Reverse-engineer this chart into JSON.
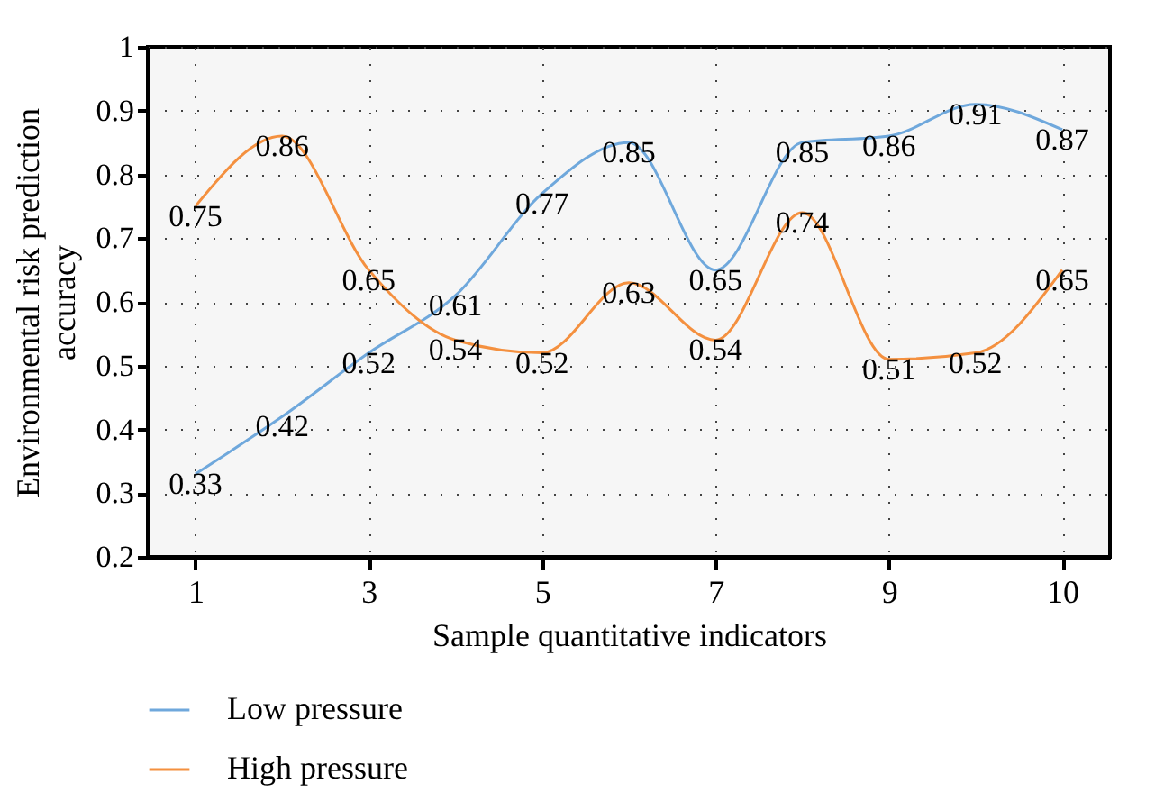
{
  "chart_data": {
    "type": "line",
    "xlabel": "Sample quantitative indicators",
    "ylabel": "Environmental risk prediction accuracy",
    "categories": [
      "1",
      null,
      "3",
      null,
      "5",
      null,
      "7",
      null,
      "9",
      null,
      "10"
    ],
    "ylim": [
      0.2,
      1
    ],
    "yticks": [
      0.2,
      0.3,
      0.4,
      0.5,
      0.6,
      0.7,
      0.8,
      0.9,
      1
    ],
    "series": [
      {
        "name": "Low pressure",
        "color": "#6fa8dc",
        "values": [
          0.33,
          0.42,
          0.52,
          0.61,
          0.77,
          0.85,
          0.65,
          0.85,
          0.86,
          0.91,
          0.87
        ]
      },
      {
        "name": "High pressure",
        "color": "#f4903f",
        "values": [
          0.75,
          0.86,
          0.65,
          0.54,
          0.52,
          0.63,
          0.54,
          0.74,
          0.51,
          0.52,
          0.65
        ]
      }
    ],
    "data_labels": true,
    "grid": true,
    "line_style": "solid",
    "marker": "none",
    "legend": "bottom left"
  }
}
